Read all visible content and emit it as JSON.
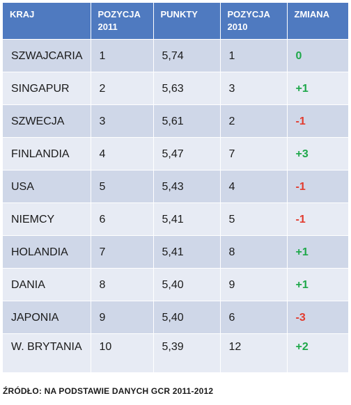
{
  "table": {
    "headers": [
      "KRAJ",
      "POZYCJA 2011",
      "PUNKTY",
      "POZYCJA 2010",
      "ZMIANA"
    ],
    "rows": [
      {
        "country": "SZWAJCARIA",
        "pos2011": "1",
        "points": "5,74",
        "pos2010": "1",
        "change": "0",
        "trend": "zero"
      },
      {
        "country": "SINGAPUR",
        "pos2011": "2",
        "points": "5,63",
        "pos2010": "3",
        "change": "+1",
        "trend": "up"
      },
      {
        "country": "SZWECJA",
        "pos2011": "3",
        "points": "5,61",
        "pos2010": "2",
        "change": "-1",
        "trend": "down"
      },
      {
        "country": "FINLANDIA",
        "pos2011": "4",
        "points": "5,47",
        "pos2010": "7",
        "change": "+3",
        "trend": "up"
      },
      {
        "country": "USA",
        "pos2011": "5",
        "points": "5,43",
        "pos2010": "4",
        "change": "-1",
        "trend": "down"
      },
      {
        "country": "NIEMCY",
        "pos2011": "6",
        "points": "5,41",
        "pos2010": "5",
        "change": "-1",
        "trend": "down"
      },
      {
        "country": "HOLANDIA",
        "pos2011": "7",
        "points": "5,41",
        "pos2010": "8",
        "change": "+1",
        "trend": "up"
      },
      {
        "country": "DANIA",
        "pos2011": "8",
        "points": "5,40",
        "pos2010": "9",
        "change": "+1",
        "trend": "up"
      },
      {
        "country": "JAPONIA",
        "pos2011": "9",
        "points": "5,40",
        "pos2010": "6",
        "change": "-3",
        "trend": "down"
      },
      {
        "country": "W. BRYTANIA",
        "pos2011": "10",
        "points": "5,39",
        "pos2010": "12",
        "change": "+2",
        "trend": "up"
      }
    ]
  },
  "source": "ŹRÓDŁO: NA PODSTAWIE DANYCH GCR 2011-2012",
  "colors": {
    "header_bg": "#4f7ac0",
    "row_odd": "#cfd7e8",
    "row_even": "#e7ebf4",
    "positive": "#1fa84a",
    "negative": "#e23b2e"
  }
}
